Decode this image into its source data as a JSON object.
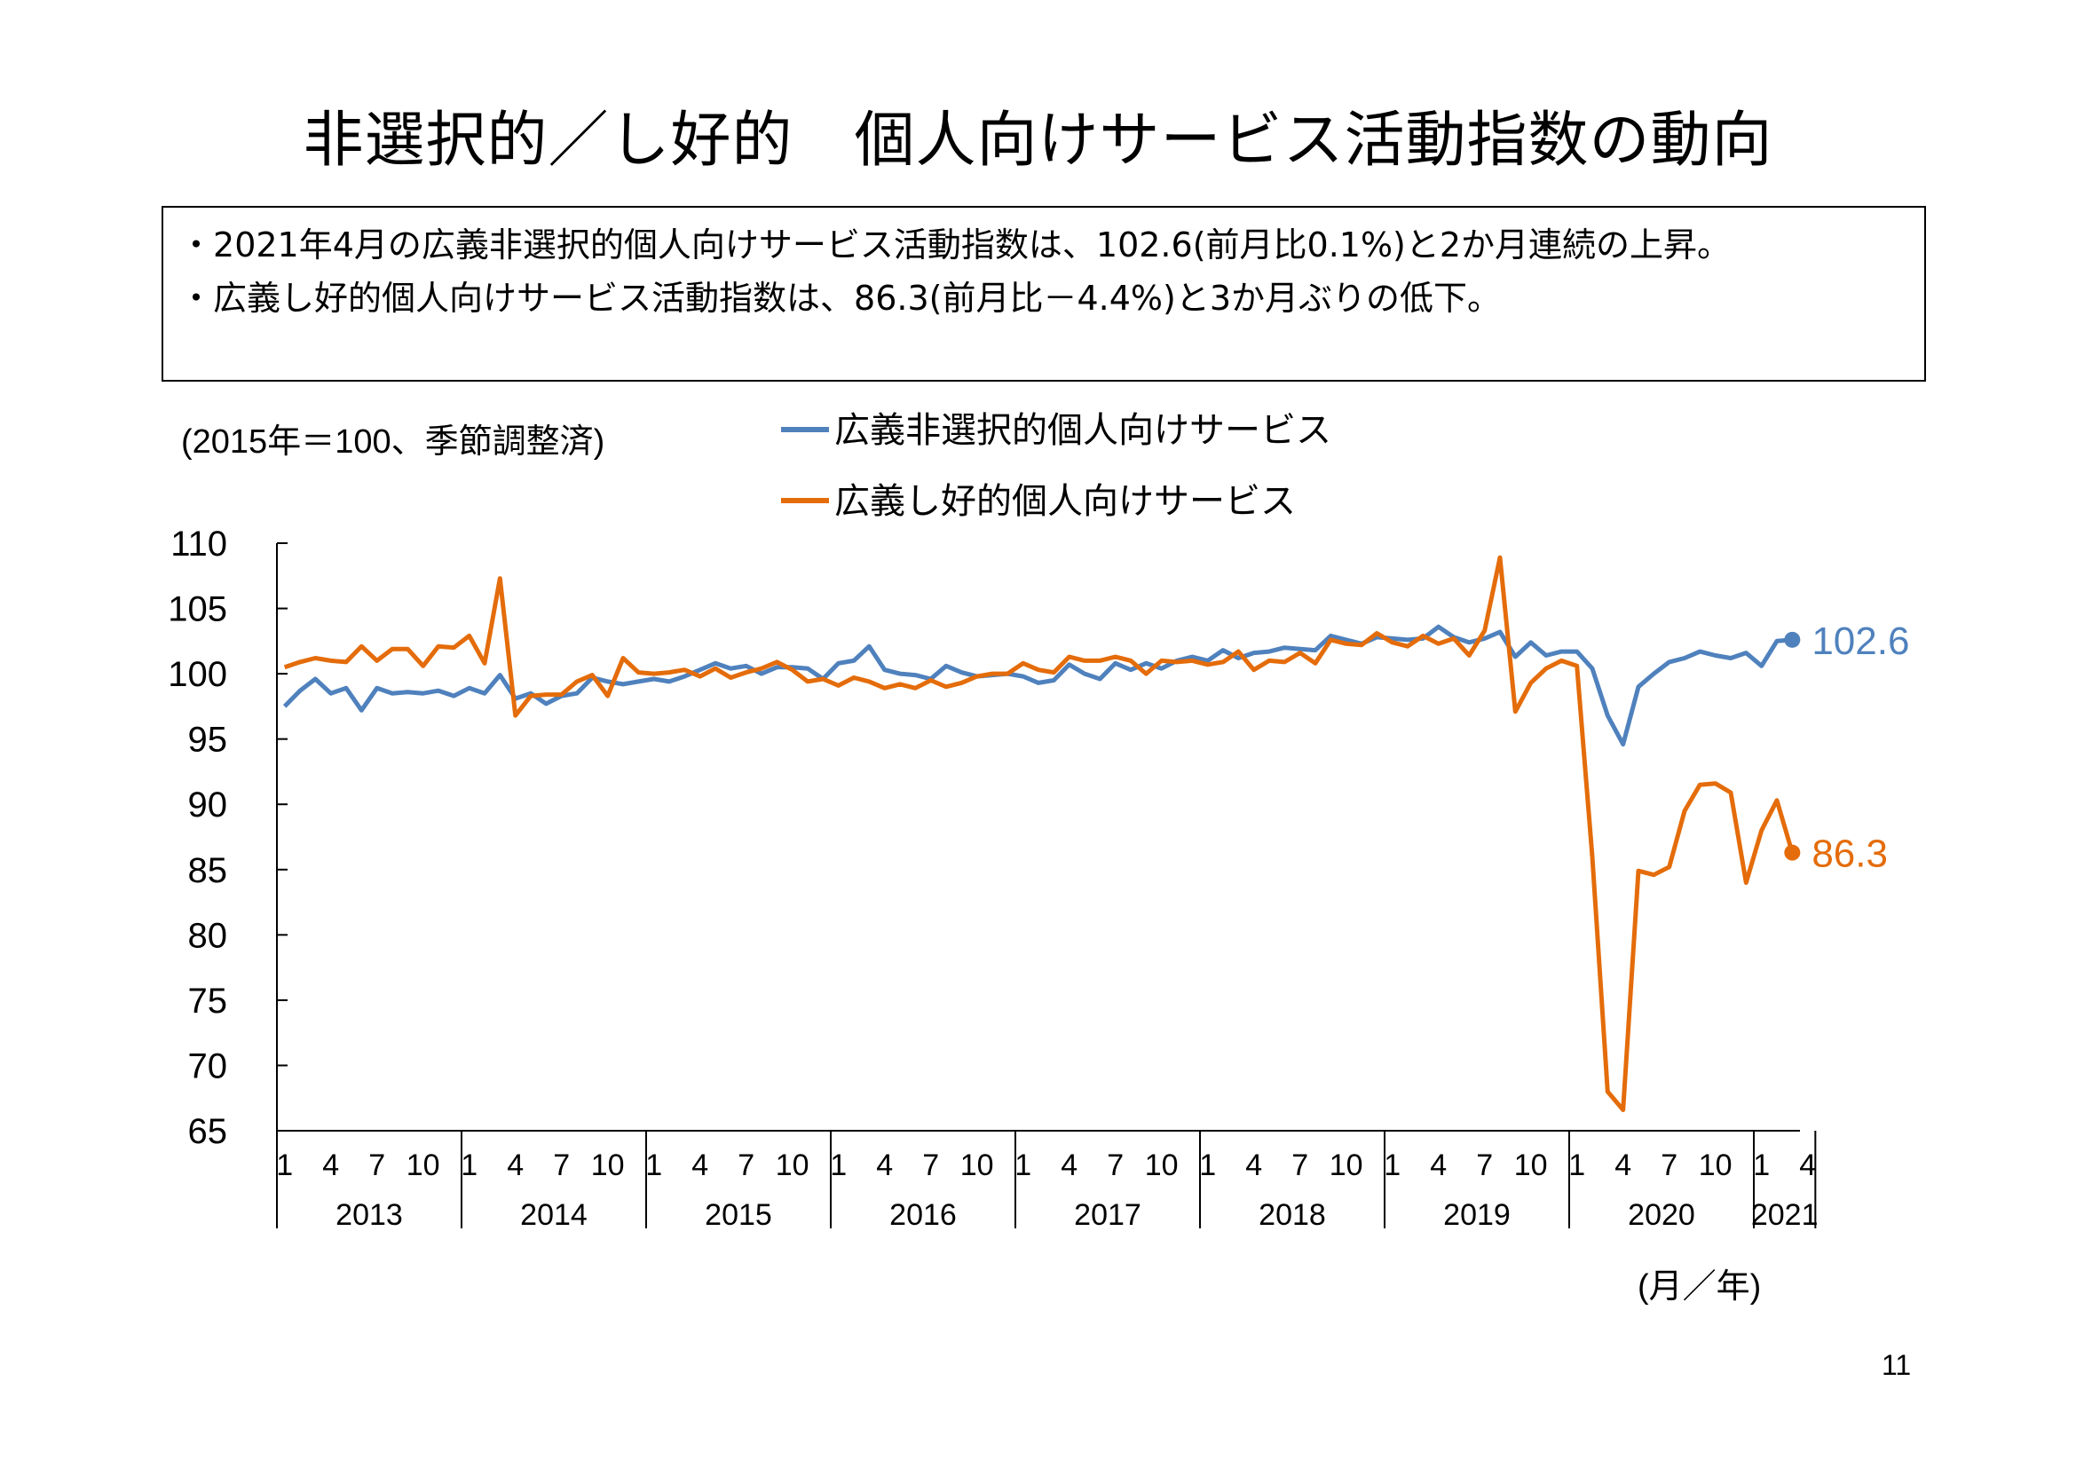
{
  "page": {
    "title": "非選択的／し好的　個人向けサービス活動指数の動向",
    "bullets": [
      "2021年4月の広義非選択的個人向けサービス活動指数は、102.6(前月比0.1%)と2か月連続の上昇。",
      "広義し好的個人向けサービス活動指数は、86.3(前月比－4.4%)と3か月ぶりの低下。"
    ],
    "bullet_mark": "・",
    "page_number": "11"
  },
  "chart_data": {
    "type": "line",
    "note": "(2015年＝100、季節調整済)",
    "xlabel": "(月／年)",
    "ylabel": "",
    "ylim": [
      65,
      110
    ],
    "yticks": [
      65,
      70,
      75,
      80,
      85,
      90,
      95,
      100,
      105,
      110
    ],
    "month_ticks": [
      "1",
      "4",
      "7",
      "10"
    ],
    "years": [
      "2013",
      "2014",
      "2015",
      "2016",
      "2017",
      "2018",
      "2019",
      "2020",
      "2021"
    ],
    "months_2021": 4,
    "legend_position": "top",
    "grid": false,
    "series": [
      {
        "name": "広義非選択的個人向けサービス",
        "color": "#4f81bd",
        "end_label": "102.6",
        "values": [
          97.5,
          98.7,
          99.6,
          98.5,
          98.9,
          97.2,
          98.9,
          98.5,
          98.6,
          98.5,
          98.7,
          98.3,
          98.9,
          98.5,
          99.9,
          98.1,
          98.5,
          97.7,
          98.3,
          98.5,
          99.7,
          99.4,
          99.2,
          99.4,
          99.6,
          99.4,
          99.8,
          100.3,
          100.8,
          100.4,
          100.6,
          100.0,
          100.5,
          100.5,
          100.4,
          99.6,
          100.8,
          101.0,
          102.1,
          100.3,
          100.0,
          99.9,
          99.6,
          100.6,
          100.1,
          99.8,
          99.9,
          100.0,
          99.8,
          99.3,
          99.5,
          100.7,
          100.0,
          99.6,
          100.8,
          100.3,
          100.8,
          100.4,
          101.0,
          101.3,
          101.0,
          101.8,
          101.2,
          101.6,
          101.7,
          102.0,
          101.9,
          101.8,
          102.9,
          102.6,
          102.3,
          102.8,
          102.7,
          102.6,
          102.7,
          103.6,
          102.8,
          102.4,
          102.7,
          103.2,
          101.3,
          102.4,
          101.4,
          101.7,
          101.7,
          100.4,
          96.8,
          94.6,
          99.0,
          100.0,
          100.9,
          101.2,
          101.7,
          101.4,
          101.2,
          101.6,
          100.6,
          102.5,
          102.6
        ]
      },
      {
        "name": "広義し好的個人向けサービス",
        "color": "#e46c0a",
        "end_label": "86.3",
        "values": [
          100.5,
          100.9,
          101.2,
          101.0,
          100.9,
          102.1,
          101.0,
          101.9,
          101.9,
          100.6,
          102.1,
          102.0,
          102.9,
          100.8,
          107.3,
          96.8,
          98.3,
          98.4,
          98.4,
          99.4,
          99.9,
          98.3,
          101.2,
          100.1,
          100.0,
          100.1,
          100.3,
          99.8,
          100.4,
          99.7,
          100.1,
          100.4,
          100.9,
          100.3,
          99.4,
          99.6,
          99.1,
          99.7,
          99.4,
          98.9,
          99.2,
          98.9,
          99.5,
          99.0,
          99.3,
          99.8,
          100.0,
          100.0,
          100.8,
          100.3,
          100.1,
          101.3,
          101.0,
          101.0,
          101.3,
          101.0,
          100.0,
          101.0,
          100.9,
          101.0,
          100.7,
          100.9,
          101.7,
          100.3,
          101.0,
          100.9,
          101.6,
          100.8,
          102.6,
          102.3,
          102.2,
          103.1,
          102.4,
          102.1,
          102.9,
          102.3,
          102.7,
          101.4,
          103.3,
          108.9,
          97.1,
          99.3,
          100.4,
          101.0,
          100.6,
          86.0,
          68.0,
          66.6,
          84.9,
          84.6,
          85.2,
          89.5,
          91.5,
          91.6,
          90.9,
          84.0,
          88.0,
          90.3,
          86.3
        ]
      }
    ]
  }
}
